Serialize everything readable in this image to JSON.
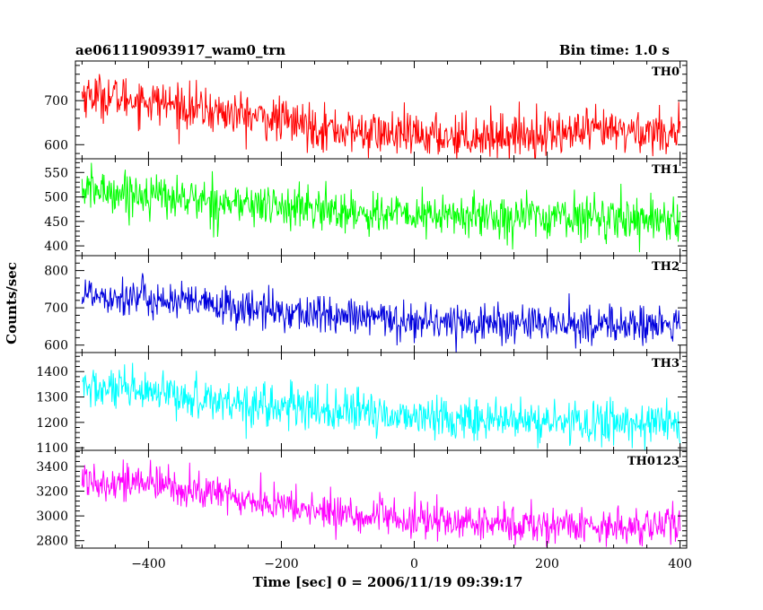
{
  "header": {
    "title": "ae061119093917_wam0_trn",
    "bin_time": "Bin time: 1.0 s"
  },
  "chart_data": {
    "type": "line",
    "xlabel": "Time [sec] 0 = 2006/11/19 09:39:17",
    "ylabel": "Counts/sec",
    "xlim": [
      -510,
      410
    ],
    "x_ticks": [
      -400,
      -200,
      0,
      200,
      400
    ],
    "x_start": -500,
    "x_end": 400,
    "x_step": 1,
    "panels": [
      {
        "name": "TH0",
        "color": "#ff0000",
        "ylim": [
          568,
          790
        ],
        "y_ticks": [
          600,
          700
        ],
        "trend": [
          {
            "x": -500,
            "y": 715
          },
          {
            "x": -400,
            "y": 700
          },
          {
            "x": -300,
            "y": 675
          },
          {
            "x": -200,
            "y": 655
          },
          {
            "x": -100,
            "y": 630
          },
          {
            "x": 0,
            "y": 620
          },
          {
            "x": 100,
            "y": 620
          },
          {
            "x": 200,
            "y": 625
          },
          {
            "x": 300,
            "y": 630
          },
          {
            "x": 400,
            "y": 630
          }
        ],
        "noise": 25
      },
      {
        "name": "TH1",
        "color": "#00ff00",
        "ylim": [
          380,
          578
        ],
        "y_ticks": [
          400,
          450,
          500,
          550
        ],
        "trend": [
          {
            "x": -500,
            "y": 515
          },
          {
            "x": -400,
            "y": 505
          },
          {
            "x": -300,
            "y": 490
          },
          {
            "x": -200,
            "y": 480
          },
          {
            "x": -100,
            "y": 470
          },
          {
            "x": 0,
            "y": 462
          },
          {
            "x": 100,
            "y": 460
          },
          {
            "x": 200,
            "y": 460
          },
          {
            "x": 300,
            "y": 458
          },
          {
            "x": 400,
            "y": 455
          }
        ],
        "noise": 22
      },
      {
        "name": "TH2",
        "color": "#0000dd",
        "ylim": [
          580,
          840
        ],
        "y_ticks": [
          600,
          700,
          800
        ],
        "trend": [
          {
            "x": -500,
            "y": 740
          },
          {
            "x": -400,
            "y": 725
          },
          {
            "x": -300,
            "y": 705
          },
          {
            "x": -200,
            "y": 690
          },
          {
            "x": -100,
            "y": 675
          },
          {
            "x": 0,
            "y": 665
          },
          {
            "x": 100,
            "y": 660
          },
          {
            "x": 200,
            "y": 655
          },
          {
            "x": 300,
            "y": 655
          },
          {
            "x": 400,
            "y": 652
          }
        ],
        "noise": 26
      },
      {
        "name": "TH3",
        "color": "#00ffff",
        "ylim": [
          1090,
          1475
        ],
        "y_ticks": [
          1100,
          1200,
          1300,
          1400
        ],
        "trend": [
          {
            "x": -500,
            "y": 1340
          },
          {
            "x": -400,
            "y": 1310
          },
          {
            "x": -300,
            "y": 1290
          },
          {
            "x": -200,
            "y": 1260
          },
          {
            "x": -100,
            "y": 1240
          },
          {
            "x": 0,
            "y": 1225
          },
          {
            "x": 100,
            "y": 1210
          },
          {
            "x": 200,
            "y": 1200
          },
          {
            "x": 300,
            "y": 1200
          },
          {
            "x": 400,
            "y": 1200
          }
        ],
        "noise": 42
      },
      {
        "name": "TH0123",
        "color": "#ff00ff",
        "ylim": [
          2740,
          3530
        ],
        "y_ticks": [
          2800,
          3000,
          3200,
          3400
        ],
        "trend": [
          {
            "x": -500,
            "y": 3300
          },
          {
            "x": -400,
            "y": 3260
          },
          {
            "x": -300,
            "y": 3180
          },
          {
            "x": -200,
            "y": 3080
          },
          {
            "x": -100,
            "y": 3010
          },
          {
            "x": 0,
            "y": 2960
          },
          {
            "x": 100,
            "y": 2940
          },
          {
            "x": 200,
            "y": 2925
          },
          {
            "x": 300,
            "y": 2920
          },
          {
            "x": 400,
            "y": 2920
          }
        ],
        "noise": 75
      }
    ]
  }
}
